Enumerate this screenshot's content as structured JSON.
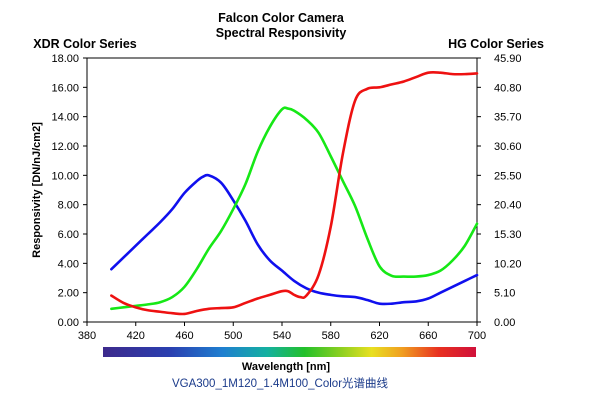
{
  "chart_data": {
    "type": "line",
    "title": "Falcon Color Camera",
    "subtitle": "Spectral Responsivity",
    "left_axis_title": "XDR Color Series",
    "right_axis_title": "HG Color Series",
    "ylabel": "Responsivity [DN/nJ/cm2]",
    "xlabel": "Wavelength [nm]",
    "caption": "VGA300_1M120_1.4M100_Color光谱曲线",
    "xlim": [
      380,
      700
    ],
    "ylim": [
      0,
      18
    ],
    "ylim_right": [
      0,
      45.9
    ],
    "x_ticks": [
      "380",
      "420",
      "460",
      "500",
      "540",
      "580",
      "620",
      "660",
      "700"
    ],
    "y_ticks": [
      "0.00",
      "2.00",
      "4.00",
      "6.00",
      "8.00",
      "10.00",
      "12.00",
      "14.00",
      "16.00",
      "18.00"
    ],
    "y_ticks_right": [
      "0.00",
      "5.10",
      "10.20",
      "15.30",
      "20.40",
      "25.50",
      "30.60",
      "35.70",
      "40.80",
      "45.90"
    ],
    "grid": false,
    "legend": "none",
    "series": [
      {
        "color": "#1010ee",
        "x": [
          400,
          410,
          420,
          430,
          440,
          450,
          460,
          470,
          475,
          480,
          490,
          500,
          510,
          520,
          530,
          540,
          550,
          560,
          570,
          580,
          590,
          600,
          610,
          620,
          630,
          640,
          650,
          660,
          670,
          680,
          690,
          700
        ],
        "y": [
          3.6,
          4.4,
          5.2,
          6.0,
          6.8,
          7.7,
          8.8,
          9.6,
          9.9,
          10.0,
          9.5,
          8.3,
          6.9,
          5.3,
          4.2,
          3.5,
          2.8,
          2.3,
          2.0,
          1.85,
          1.75,
          1.7,
          1.5,
          1.25,
          1.25,
          1.35,
          1.4,
          1.6,
          2.0,
          2.4,
          2.8,
          3.2
        ]
      },
      {
        "color": "#16e816",
        "x": [
          400,
          410,
          420,
          430,
          440,
          450,
          460,
          470,
          480,
          490,
          500,
          510,
          520,
          530,
          540,
          545,
          550,
          560,
          570,
          580,
          590,
          600,
          610,
          620,
          630,
          640,
          650,
          660,
          670,
          680,
          690,
          700
        ],
        "y": [
          0.9,
          1.0,
          1.1,
          1.2,
          1.35,
          1.7,
          2.4,
          3.6,
          5.0,
          6.2,
          7.7,
          9.4,
          11.6,
          13.3,
          14.5,
          14.55,
          14.4,
          13.8,
          12.9,
          11.3,
          9.6,
          7.9,
          5.7,
          3.8,
          3.15,
          3.1,
          3.1,
          3.2,
          3.5,
          4.2,
          5.2,
          6.7
        ]
      },
      {
        "color": "#ee1111",
        "x": [
          400,
          410,
          420,
          430,
          440,
          450,
          460,
          470,
          480,
          490,
          500,
          510,
          520,
          530,
          540,
          545,
          550,
          555,
          560,
          570,
          580,
          590,
          600,
          610,
          620,
          630,
          640,
          650,
          660,
          670,
          680,
          690,
          700
        ],
        "y": [
          1.8,
          1.3,
          1.0,
          0.8,
          0.7,
          0.6,
          0.55,
          0.75,
          0.9,
          0.95,
          1.0,
          1.3,
          1.6,
          1.85,
          2.1,
          2.1,
          1.85,
          1.7,
          1.8,
          3.2,
          6.5,
          11.5,
          15.1,
          15.9,
          16.0,
          16.2,
          16.4,
          16.7,
          17.0,
          17.0,
          16.9,
          16.9,
          16.95
        ]
      }
    ]
  }
}
